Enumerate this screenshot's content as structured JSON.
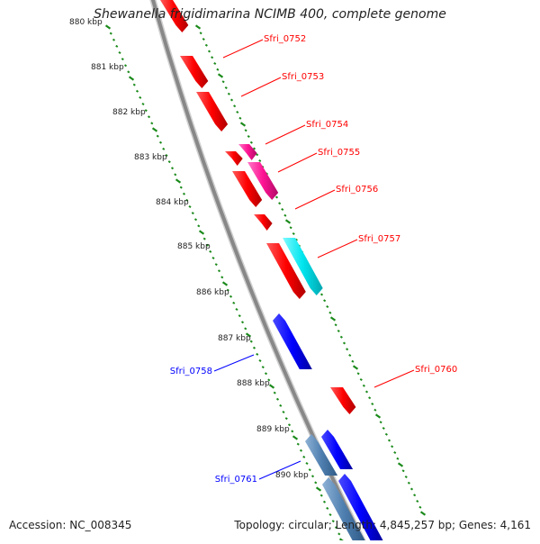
{
  "title": "Shewanella frigidimarina NCIMB 400, complete genome",
  "accession": "Accession: NC_008345",
  "summary": "Topology: circular; Length: 4,845,257 bp; Genes: 4,161",
  "colors": {
    "red": "#ff0000",
    "magenta": "#ff1493",
    "cyan": "#00e5ee",
    "blue": "#0000ff",
    "steelblue": "#4f7fb0",
    "backbone": "#888888",
    "tick": "#1a8a1a"
  },
  "kbp_labels": [
    "880 kbp",
    "881 kbp",
    "882 kbp",
    "883 kbp",
    "884 kbp",
    "885 kbp",
    "886 kbp",
    "887 kbp",
    "888 kbp",
    "889 kbp",
    "890 kbp"
  ],
  "gene_labels": [
    {
      "text": "Sfri_0752",
      "color": "red"
    },
    {
      "text": "Sfri_0753",
      "color": "red"
    },
    {
      "text": "Sfri_0754",
      "color": "red"
    },
    {
      "text": "Sfri_0755",
      "color": "red"
    },
    {
      "text": "Sfri_0756",
      "color": "red"
    },
    {
      "text": "Sfri_0757",
      "color": "red"
    },
    {
      "text": "Sfri_0758",
      "color": "blue"
    },
    {
      "text": "Sfri_0760",
      "color": "red"
    },
    {
      "text": "Sfri_0761",
      "color": "blue"
    }
  ]
}
